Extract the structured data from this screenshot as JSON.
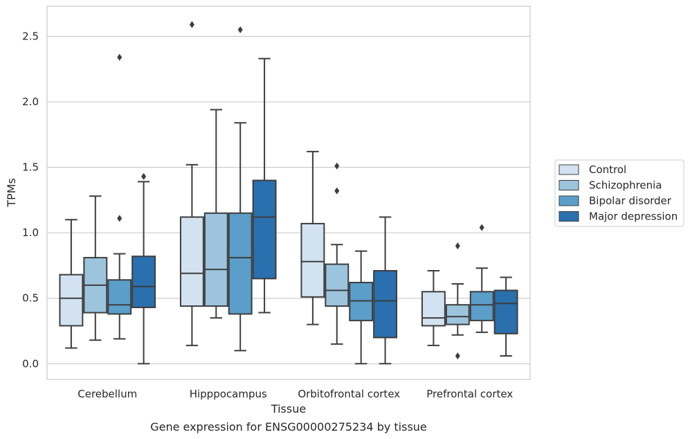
{
  "chart_data": {
    "type": "box",
    "xlabel": "Tissue",
    "ylabel": "TPMs",
    "caption": "Gene expression for ENSG00000275234 by tissue",
    "ylim": [
      -0.12,
      2.73
    ],
    "yticks": [
      "0.0",
      "0.5",
      "1.0",
      "1.5",
      "2.0",
      "2.5"
    ],
    "ytick_values": [
      0.0,
      0.5,
      1.0,
      1.5,
      2.0,
      2.5
    ],
    "grid": "horizontal",
    "legend_position": "right, outside plot",
    "categories": [
      "Cerebellum",
      "Hipppocampus",
      "Orbitofrontal cortex",
      "Prefrontal cortex"
    ],
    "series": [
      {
        "name": "Control",
        "color": "#d3e2f1",
        "boxes": [
          {
            "whislo": 0.12,
            "q1": 0.29,
            "med": 0.5,
            "q3": 0.68,
            "whishi": 1.1,
            "fliers": []
          },
          {
            "whislo": 0.14,
            "q1": 0.44,
            "med": 0.69,
            "q3": 1.12,
            "whishi": 1.52,
            "fliers": [
              2.59
            ]
          },
          {
            "whislo": 0.3,
            "q1": 0.51,
            "med": 0.78,
            "q3": 1.07,
            "whishi": 1.62,
            "fliers": []
          },
          {
            "whislo": 0.14,
            "q1": 0.29,
            "med": 0.35,
            "q3": 0.55,
            "whishi": 0.71,
            "fliers": []
          }
        ]
      },
      {
        "name": "Schizophrenia",
        "color": "#9cc4dd",
        "boxes": [
          {
            "whislo": 0.18,
            "q1": 0.39,
            "med": 0.6,
            "q3": 0.81,
            "whishi": 1.28,
            "fliers": []
          },
          {
            "whislo": 0.35,
            "q1": 0.44,
            "med": 0.72,
            "q3": 1.15,
            "whishi": 1.94,
            "fliers": []
          },
          {
            "whislo": 0.15,
            "q1": 0.44,
            "med": 0.56,
            "q3": 0.76,
            "whishi": 0.91,
            "fliers": [
              1.32,
              1.51
            ]
          },
          {
            "whislo": 0.22,
            "q1": 0.3,
            "med": 0.36,
            "q3": 0.45,
            "whishi": 0.61,
            "fliers": [
              0.06,
              0.9
            ]
          }
        ]
      },
      {
        "name": "Bipolar disorder",
        "color": "#5a9ec9",
        "boxes": [
          {
            "whislo": 0.19,
            "q1": 0.38,
            "med": 0.45,
            "q3": 0.64,
            "whishi": 0.84,
            "fliers": [
              1.11,
              2.34
            ]
          },
          {
            "whislo": 0.1,
            "q1": 0.38,
            "med": 0.81,
            "q3": 1.15,
            "whishi": 1.84,
            "fliers": [
              2.55
            ]
          },
          {
            "whislo": 0.0,
            "q1": 0.33,
            "med": 0.48,
            "q3": 0.62,
            "whishi": 0.86,
            "fliers": []
          },
          {
            "whislo": 0.24,
            "q1": 0.33,
            "med": 0.45,
            "q3": 0.55,
            "whishi": 0.73,
            "fliers": [
              1.04
            ]
          }
        ]
      },
      {
        "name": "Major depression",
        "color": "#2a6fae",
        "boxes": [
          {
            "whislo": 0.0,
            "q1": 0.43,
            "med": 0.59,
            "q3": 0.82,
            "whishi": 1.39,
            "fliers": [
              1.43
            ]
          },
          {
            "whislo": 0.39,
            "q1": 0.65,
            "med": 1.12,
            "q3": 1.4,
            "whishi": 2.33,
            "fliers": []
          },
          {
            "whislo": 0.0,
            "q1": 0.2,
            "med": 0.48,
            "q3": 0.71,
            "whishi": 1.12,
            "fliers": []
          },
          {
            "whislo": 0.06,
            "q1": 0.23,
            "med": 0.46,
            "q3": 0.56,
            "whishi": 0.66,
            "fliers": []
          }
        ]
      }
    ]
  }
}
